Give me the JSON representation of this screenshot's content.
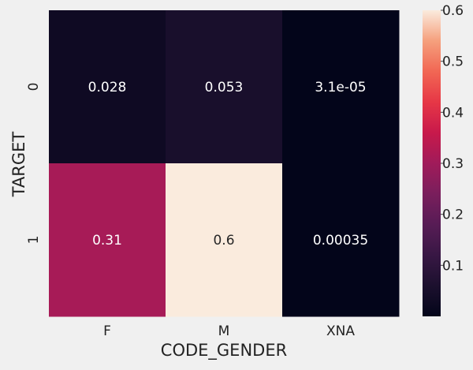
{
  "chart_data": {
    "type": "heatmap",
    "xlabel": "CODE_GENDER",
    "ylabel": "TARGET",
    "x_categories": [
      "F",
      "M",
      "XNA"
    ],
    "y_categories": [
      "0",
      "1"
    ],
    "cells": [
      [
        {
          "value": 0.028,
          "label": "0.028"
        },
        {
          "value": 0.053,
          "label": "0.053"
        },
        {
          "value": 3.1e-05,
          "label": "3.1e-05"
        }
      ],
      [
        {
          "value": 0.31,
          "label": "0.31"
        },
        {
          "value": 0.6,
          "label": "0.6"
        },
        {
          "value": 0.00035,
          "label": "0.00035"
        }
      ]
    ],
    "colorbar": {
      "range": [
        0,
        0.6
      ],
      "ticks": [
        0.1,
        0.2,
        0.3,
        0.4,
        0.5,
        0.6
      ],
      "tick_labels": [
        "0.1",
        "0.2",
        "0.3",
        "0.4",
        "0.5",
        "0.6"
      ],
      "colormap": "rocket"
    },
    "grid": false,
    "background_color": "#f0f0f0"
  }
}
